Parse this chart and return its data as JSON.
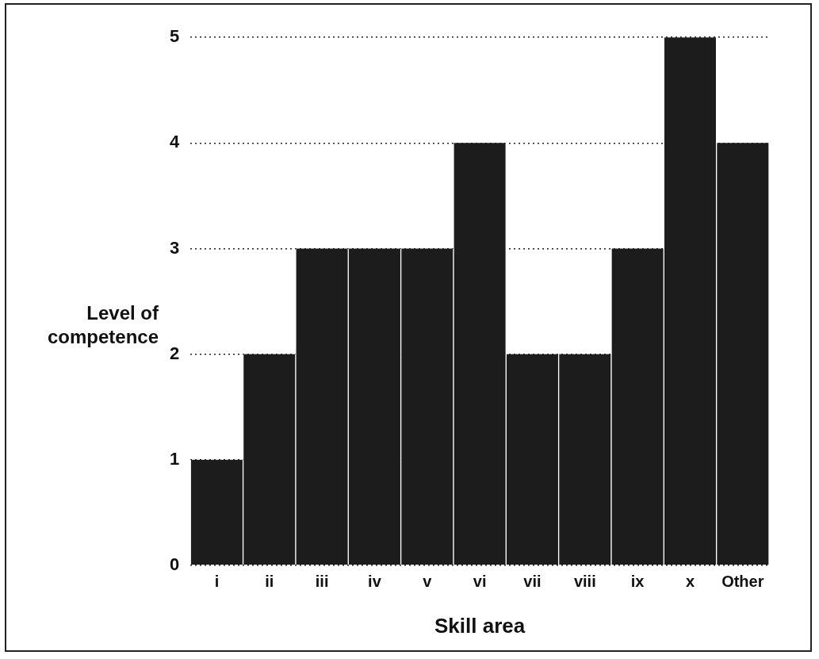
{
  "chart_data": {
    "type": "bar",
    "xlabel": "Skill area",
    "ylabel": "Level of competence",
    "categories": [
      "i",
      "ii",
      "iii",
      "iv",
      "v",
      "vi",
      "vii",
      "viii",
      "ix",
      "x",
      "Other"
    ],
    "values": [
      1,
      2,
      3,
      3,
      3,
      4,
      2,
      2,
      3,
      5,
      4
    ],
    "color": "#1c1c1c",
    "ylim": [
      0,
      5
    ],
    "yticks": [
      0,
      1,
      2,
      3,
      4,
      5
    ],
    "grid": "y"
  }
}
